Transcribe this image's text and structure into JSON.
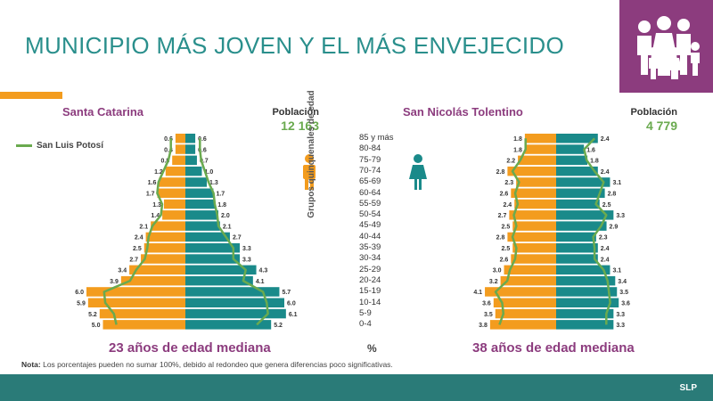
{
  "title": "MUNICIPIO MÁS JOVEN Y EL MÁS ENVEJECIDO",
  "legend": {
    "label": "San Luis Potosí"
  },
  "age_axis_label": "Grupos quinquenales de edad",
  "x_unit": "%",
  "footer": "SLP",
  "note": {
    "prefix": "Nota:",
    "text": " Los porcentajes pueden no sumar 100%, debido al redondeo que genera diferencias poco significativas."
  },
  "colors": {
    "men": "#f39c1e",
    "women": "#1a8a8a",
    "state_line": "#6aaa4f",
    "accent": "#8c3c7e"
  },
  "icons": [
    "family-icon",
    "male-person-icon",
    "female-person-icon"
  ],
  "chart_data": [
    {
      "type": "bar",
      "name": "Santa Catarina",
      "population_label": "Población",
      "population": "12 163",
      "median_label": "23 años de edad mediana",
      "categories": [
        "85 y más",
        "80-84",
        "75-79",
        "70-74",
        "65-69",
        "60-64",
        "55-59",
        "50-54",
        "45-49",
        "40-44",
        "35-39",
        "30-34",
        "25-29",
        "20-24",
        "15-19",
        "10-14",
        "5-9",
        "0-4"
      ],
      "series": [
        {
          "values": [
            0.6,
            0.6,
            0.8,
            1.2,
            1.6,
            1.7,
            1.3,
            1.4,
            2.1,
            2.4,
            2.5,
            2.7,
            3.4,
            3.9,
            6.0,
            5.9,
            5.2,
            5.0
          ]
        },
        {
          "values": [
            0.6,
            0.6,
            0.7,
            1.0,
            1.3,
            1.7,
            1.8,
            2.0,
            2.1,
            2.7,
            3.3,
            3.3,
            4.3,
            4.1,
            5.7,
            6.0,
            6.1,
            5.2
          ]
        }
      ]
    },
    {
      "type": "bar",
      "name": "San Nicolás Tolentino",
      "population_label": "Población",
      "population": "4 779",
      "median_label": "38 años de edad mediana",
      "categories": [
        "85 y más",
        "80-84",
        "75-79",
        "70-74",
        "65-69",
        "60-64",
        "55-59",
        "50-54",
        "45-49",
        "40-44",
        "35-39",
        "30-34",
        "25-29",
        "20-24",
        "15-19",
        "10-14",
        "5-9",
        "0-4"
      ],
      "series": [
        {
          "values": [
            1.8,
            1.8,
            2.2,
            2.8,
            2.3,
            2.6,
            2.4,
            2.7,
            2.5,
            2.8,
            2.5,
            2.6,
            3.0,
            3.2,
            4.1,
            3.6,
            3.5,
            3.8
          ]
        },
        {
          "values": [
            2.4,
            1.6,
            1.8,
            2.4,
            3.1,
            2.8,
            2.5,
            3.3,
            2.9,
            2.3,
            2.4,
            2.4,
            3.1,
            3.4,
            3.5,
            3.6,
            3.3,
            3.3
          ]
        }
      ]
    }
  ]
}
